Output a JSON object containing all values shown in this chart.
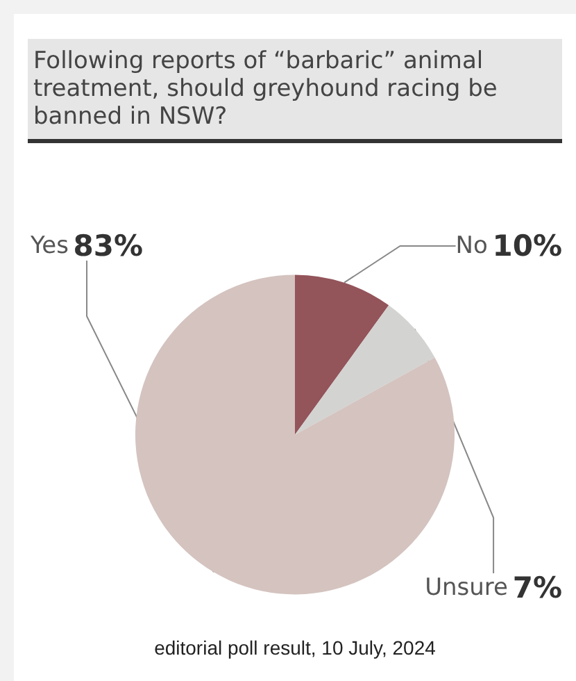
{
  "chart_data": {
    "type": "pie",
    "title": "Following reports of “barbaric” animal treatment, should greyhound racing be banned in NSW?",
    "categories": [
      "No",
      "Unsure",
      "Yes"
    ],
    "values": [
      10,
      7,
      83
    ],
    "value_labels": [
      "10%",
      "7%",
      "83%"
    ],
    "colors": [
      "#93545a",
      "#d3d3d1",
      "#d4c3bf"
    ],
    "annotations": [
      "editorial poll result, 10 July, 2024"
    ]
  }
}
